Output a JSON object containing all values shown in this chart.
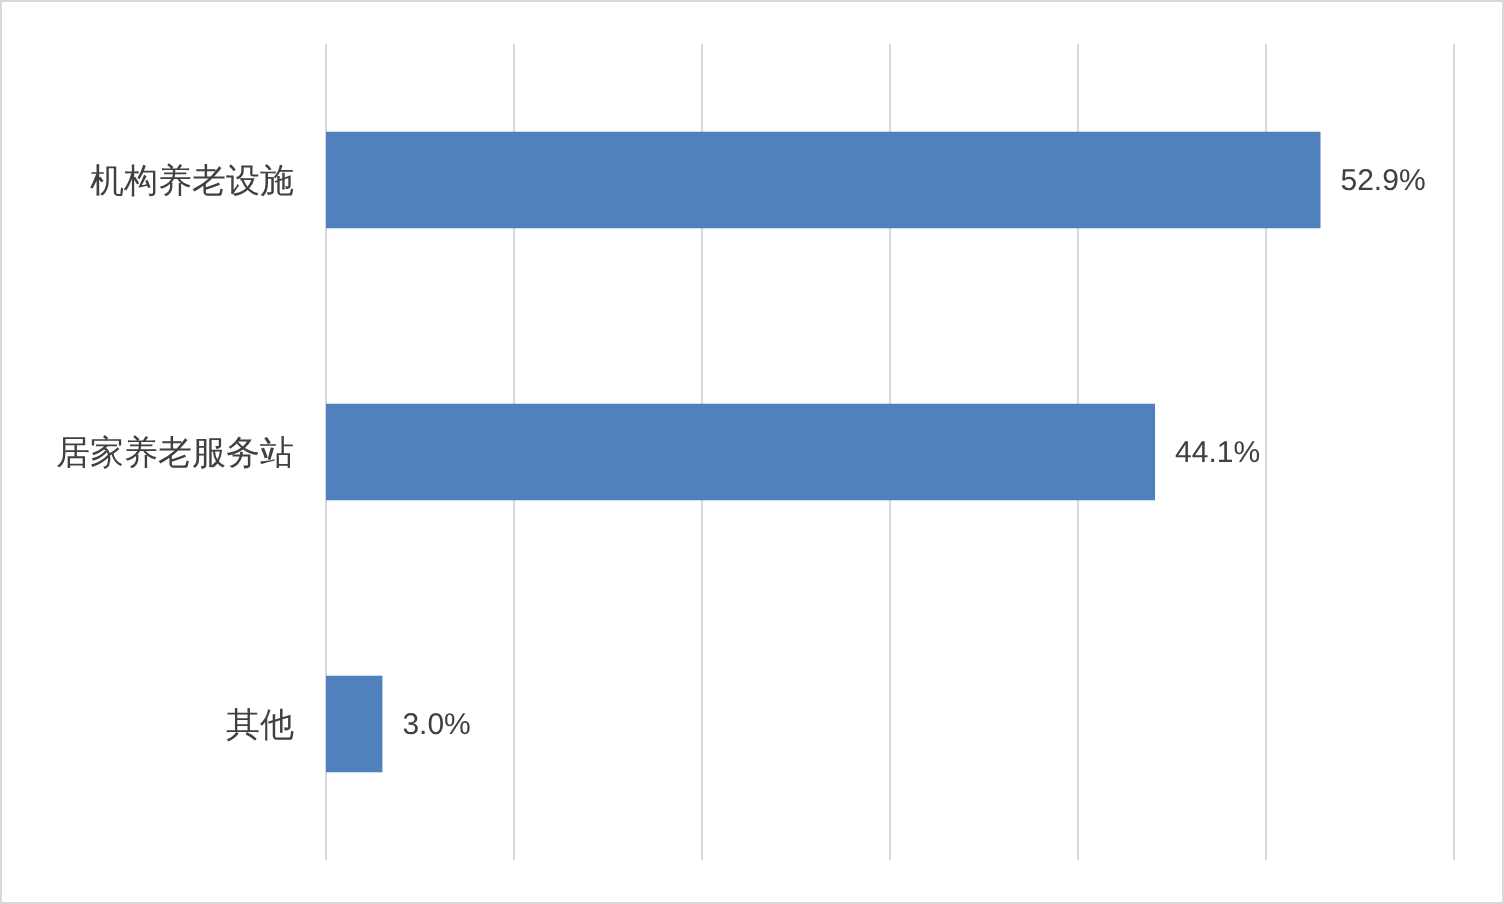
{
  "chart_data": {
    "type": "bar",
    "orientation": "horizontal",
    "categories": [
      "机构养老设施",
      "居家养老服务站",
      "其他"
    ],
    "values": [
      52.9,
      44.1,
      3.0
    ],
    "value_labels": [
      "52.9%",
      "44.1%",
      "3.0%"
    ],
    "color": "#4f81bd",
    "xlim": [
      0,
      60
    ],
    "xticks": [
      {
        "value": 0,
        "label": null
      },
      {
        "value": 10,
        "label": null
      },
      {
        "value": 20,
        "label": null
      },
      {
        "value": 30,
        "label": null
      },
      {
        "value": 40,
        "label": null
      },
      {
        "value": 50,
        "label": null
      },
      {
        "value": 60,
        "label": null
      }
    ],
    "grid": "x",
    "tick_labels": "y"
  }
}
